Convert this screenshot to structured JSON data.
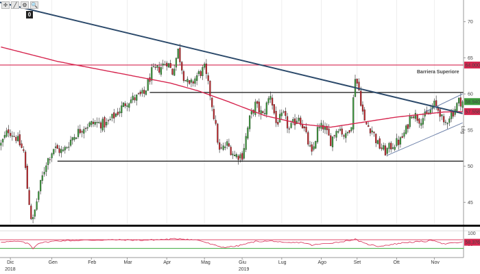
{
  "toolbar": {
    "icons": [
      "crosshair-icon",
      "draw-line-icon",
      "settings-icon",
      "zoom-icon"
    ],
    "glyphs": [
      "✛",
      "╱",
      "⚙",
      "🔍"
    ],
    "badge": "0"
  },
  "colors": {
    "candle_up": "#3c9a3c",
    "candle_down": "#c0282d",
    "ma200": "#d6264f",
    "downtrend": "#2c4a6b",
    "channel": "#6b7fa8",
    "barrier": "#d6264f",
    "range": "#111111",
    "rsi": "#d6264f",
    "rsi_upper": "#e04a6a",
    "rsi_lower": "#3aa83a"
  },
  "chart_data": [
    {
      "type": "candlestick",
      "title": "",
      "x_labels": [
        "Dic",
        "Gen",
        "Feb",
        "Mar",
        "Apr",
        "Mag",
        "Giu",
        "Lug",
        "Ago",
        "Set",
        "Ott",
        "Nov"
      ],
      "x_label_idx": [
        5,
        27,
        48,
        67,
        88,
        108,
        128,
        149,
        170,
        189,
        210,
        230
      ],
      "year_labels": [
        {
          "label": "2018",
          "idx": 5
        },
        {
          "label": "2019",
          "idx": 129
        }
      ],
      "y_ticks": [
        "70",
        "65",
        "60",
        "55",
        "50",
        "45"
      ],
      "ylim": [
        42,
        73
      ],
      "log_label": "Log",
      "price_tags": [
        {
          "label": "64.0000",
          "value": 64.0,
          "color": "#d6264f"
        },
        {
          "label": "58.9400",
          "value": 58.94,
          "color": "#3c9a3c"
        },
        {
          "label": "57.5584",
          "value": 57.56,
          "color": "#d6264f"
        }
      ],
      "annotation": "Barriera Superiore",
      "levels": {
        "barrier": 64.0,
        "range_top": 60.2,
        "range_bottom": 50.7
      },
      "ma200_anchors": [
        [
          0,
          66.5
        ],
        [
          30,
          64.5
        ],
        [
          60,
          63.0
        ],
        [
          90,
          61.5
        ],
        [
          105,
          60.4
        ],
        [
          120,
          59.0
        ],
        [
          140,
          57.0
        ],
        [
          160,
          55.8
        ],
        [
          175,
          55.4
        ],
        [
          190,
          56.0
        ],
        [
          210,
          56.8
        ],
        [
          235,
          57.5
        ],
        [
          245,
          57.56
        ]
      ],
      "downtrend_line": [
        [
          5,
          72.5
        ],
        [
          245,
          57.3
        ]
      ],
      "channel": {
        "lower": [
          [
            205,
            51.5
          ],
          [
            245,
            56.0
          ]
        ],
        "upper": [
          [
            225,
            57.5
          ],
          [
            245,
            60.0
          ]
        ]
      },
      "closes_anchors": [
        [
          0,
          53.0
        ],
        [
          4,
          55.0
        ],
        [
          8,
          54.0
        ],
        [
          12,
          52.0
        ],
        [
          14,
          47.0
        ],
        [
          16,
          43.0
        ],
        [
          17,
          42.5
        ],
        [
          20,
          46.5
        ],
        [
          24,
          50.5
        ],
        [
          28,
          52.5
        ],
        [
          33,
          52.0
        ],
        [
          38,
          54.0
        ],
        [
          44,
          55.5
        ],
        [
          50,
          56.0
        ],
        [
          56,
          55.8
        ],
        [
          62,
          57.5
        ],
        [
          67,
          59.0
        ],
        [
          72,
          59.5
        ],
        [
          76,
          60.0
        ],
        [
          80,
          63.0
        ],
        [
          84,
          63.5
        ],
        [
          88,
          64.5
        ],
        [
          91,
          63.0
        ],
        [
          94,
          66.0
        ],
        [
          97,
          62.5
        ],
        [
          100,
          61.0
        ],
        [
          104,
          62.5
        ],
        [
          108,
          63.5
        ],
        [
          111,
          60.0
        ],
        [
          113,
          57.0
        ],
        [
          116,
          52.0
        ],
        [
          120,
          53.0
        ],
        [
          124,
          51.5
        ],
        [
          128,
          51.5
        ],
        [
          132,
          56.5
        ],
        [
          135,
          58.5
        ],
        [
          139,
          57.0
        ],
        [
          143,
          60.0
        ],
        [
          146,
          56.0
        ],
        [
          150,
          57.0
        ],
        [
          153,
          55.0
        ],
        [
          158,
          57.0
        ],
        [
          161,
          55.0
        ],
        [
          165,
          51.5
        ],
        [
          168,
          55.0
        ],
        [
          171,
          55.5
        ],
        [
          175,
          53.5
        ],
        [
          179,
          55.5
        ],
        [
          183,
          54.0
        ],
        [
          186,
          56.0
        ],
        [
          188,
          62.5
        ],
        [
          190,
          60.5
        ],
        [
          193,
          56.0
        ],
        [
          197,
          55.0
        ],
        [
          200,
          53.0
        ],
        [
          204,
          52.0
        ],
        [
          208,
          53.0
        ],
        [
          212,
          53.5
        ],
        [
          215,
          55.0
        ],
        [
          218,
          57.5
        ],
        [
          222,
          56.5
        ],
        [
          226,
          57.0
        ],
        [
          230,
          58.5
        ],
        [
          233,
          57.5
        ],
        [
          235,
          55.5
        ],
        [
          238,
          57.0
        ],
        [
          240,
          57.5
        ],
        [
          243,
          59.0
        ],
        [
          245,
          58.94
        ]
      ]
    },
    {
      "type": "line",
      "title": "",
      "y_ticks": [
        "100",
        "50"
      ],
      "ylim": [
        0,
        105
      ],
      "upper_level": 70,
      "lower_level": 30,
      "last_label": "58.3761",
      "last_value": 58.38,
      "anchors": [
        [
          0,
          60
        ],
        [
          10,
          62
        ],
        [
          15,
          50
        ],
        [
          17,
          30
        ],
        [
          20,
          55
        ],
        [
          30,
          65
        ],
        [
          45,
          68
        ],
        [
          60,
          70
        ],
        [
          75,
          68
        ],
        [
          88,
          72
        ],
        [
          95,
          75
        ],
        [
          105,
          68
        ],
        [
          113,
          45
        ],
        [
          118,
          35
        ],
        [
          125,
          40
        ],
        [
          135,
          62
        ],
        [
          145,
          64
        ],
        [
          150,
          55
        ],
        [
          160,
          58
        ],
        [
          165,
          45
        ],
        [
          170,
          50
        ],
        [
          180,
          60
        ],
        [
          188,
          72
        ],
        [
          193,
          52
        ],
        [
          200,
          40
        ],
        [
          205,
          45
        ],
        [
          215,
          58
        ],
        [
          225,
          62
        ],
        [
          230,
          68
        ],
        [
          235,
          50
        ],
        [
          240,
          55
        ],
        [
          245,
          58.38
        ]
      ]
    }
  ]
}
